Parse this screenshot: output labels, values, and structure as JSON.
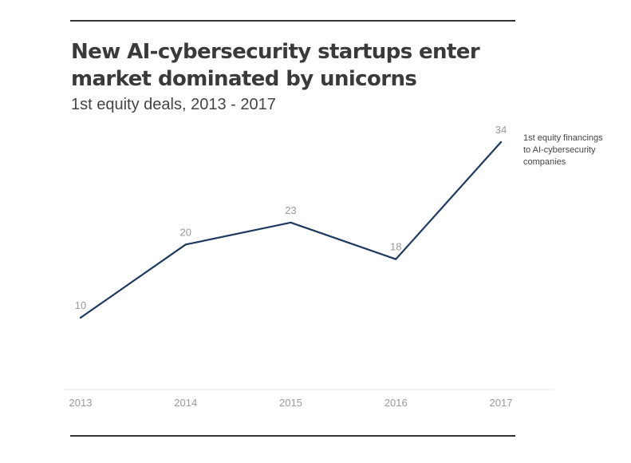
{
  "chart_data": {
    "type": "line",
    "title": "New AI-cybersecurity startups enter market dominated by unicorns",
    "subtitle": "1st equity deals, 2013 - 2017",
    "categories": [
      "2013",
      "2014",
      "2015",
      "2016",
      "2017"
    ],
    "series": [
      {
        "name": "1st equity financings to AI-cybersecurity companies",
        "legend_lines": [
          "1st equity financings",
          "to AI-cybersecurity",
          "companies"
        ],
        "values": [
          10,
          20,
          23,
          18,
          34
        ],
        "labels": [
          "10",
          "20",
          "23",
          "18",
          "34"
        ],
        "color": "#1f3a5f"
      }
    ],
    "xlabel": "",
    "ylabel": "",
    "ylim": [
      0,
      40
    ],
    "grid": false,
    "legend_placement": "right of last point"
  }
}
